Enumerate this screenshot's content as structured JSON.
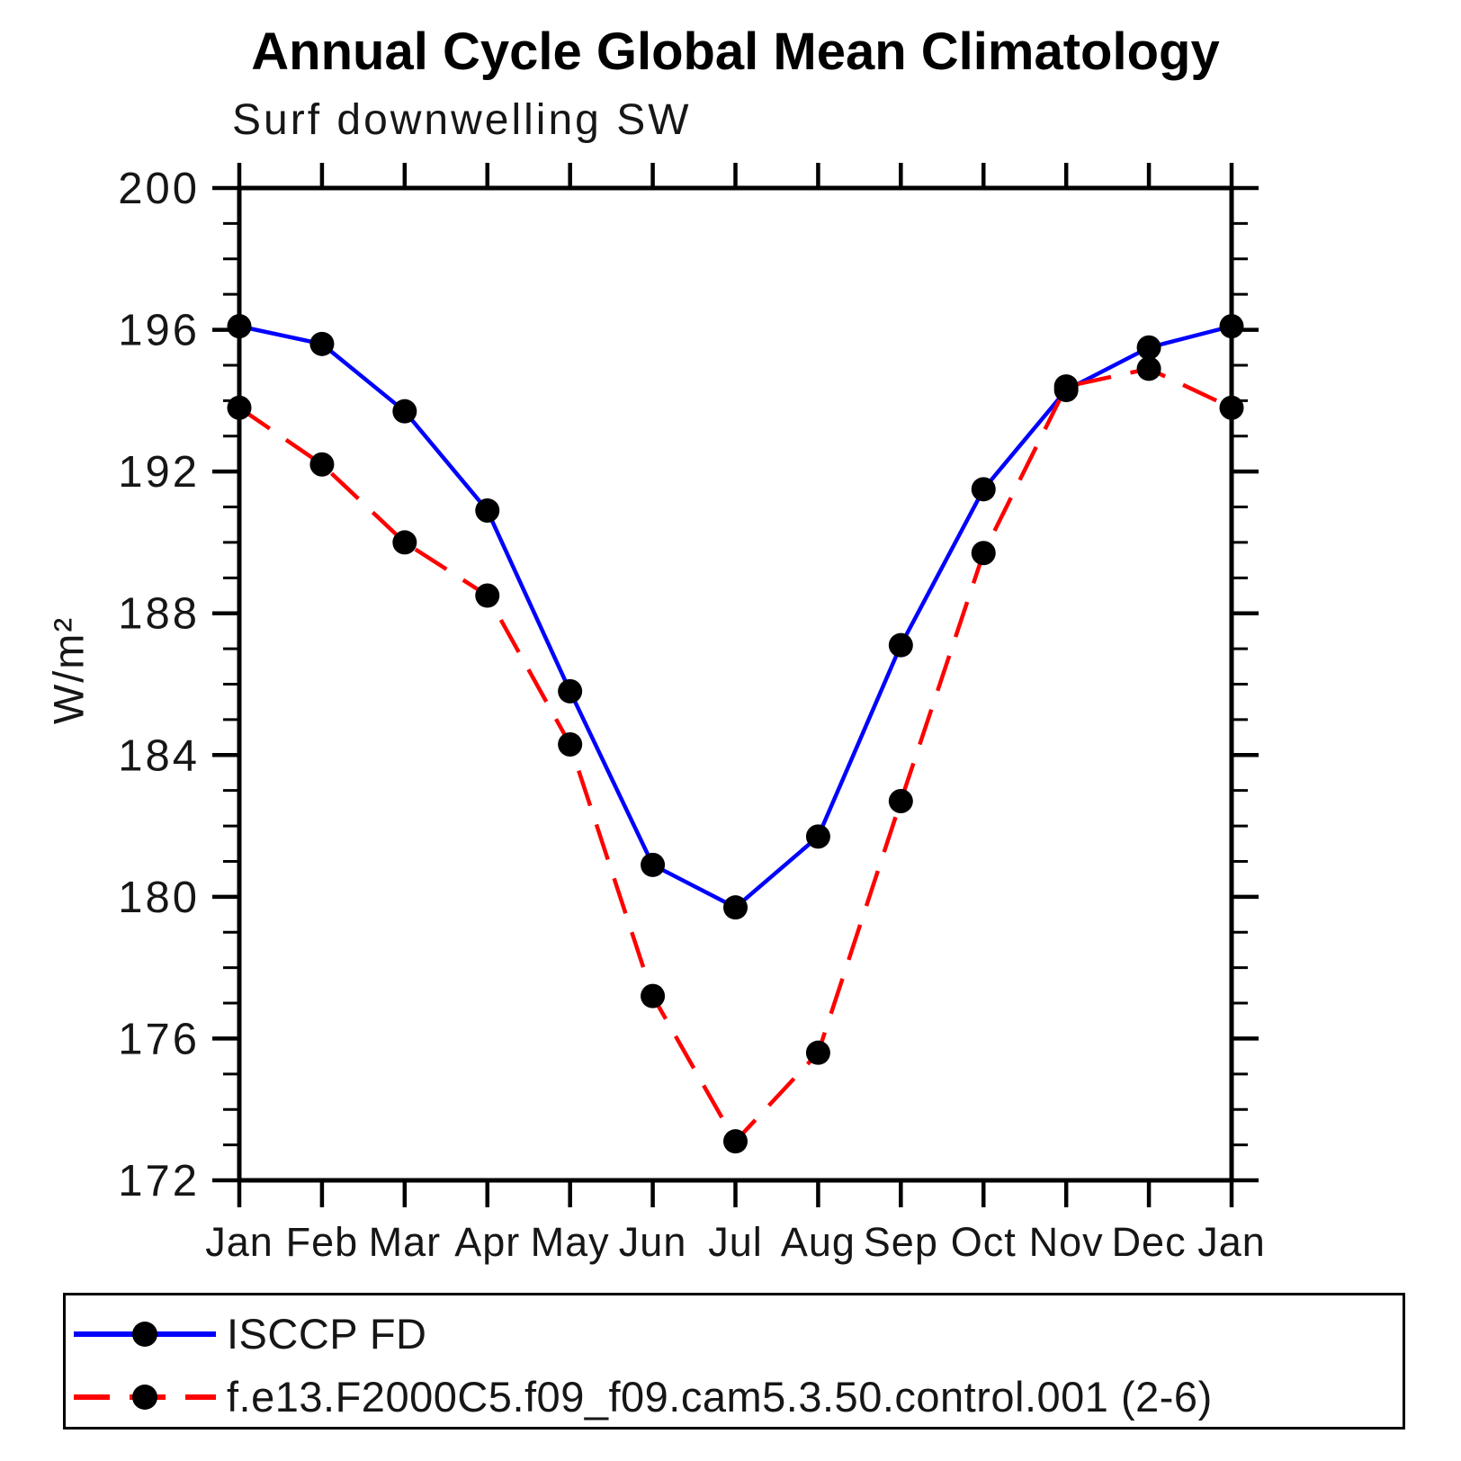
{
  "title": "Annual Cycle Global Mean Climatology",
  "subtitle": "Surf downwelling SW",
  "colors": {
    "obs_line": "#0000ff",
    "model_line": "#ff0000",
    "marker": "#000000",
    "axis": "#000000",
    "background": "#ffffff"
  },
  "chart_data": {
    "type": "line",
    "title": "Annual Cycle Global Mean Climatology",
    "subtitle": "Surf downwelling SW",
    "xlabel": "",
    "ylabel": "W/m²",
    "categories": [
      "Jan",
      "Feb",
      "Mar",
      "Apr",
      "May",
      "Jun",
      "Jul",
      "Aug",
      "Sep",
      "Oct",
      "Nov",
      "Dec",
      "Jan"
    ],
    "ylim": [
      172,
      200
    ],
    "ytick_major": 4,
    "ytick_minor": 1,
    "ytick_labels": [
      "172",
      "176",
      "180",
      "184",
      "188",
      "192",
      "196",
      "200"
    ],
    "grid": false,
    "legend_position": "bottom",
    "series": [
      {
        "name": "ISCCP FD",
        "color": "#0000ff",
        "style": "solid",
        "marker": "circle",
        "values": [
          196.1,
          195.6,
          193.7,
          190.9,
          185.8,
          180.9,
          179.7,
          181.7,
          187.1,
          191.5,
          194.3,
          195.5,
          196.1
        ]
      },
      {
        "name": "f.e13.F2000C5.f09_f09.cam5.3.50.control.001 (2-6)",
        "color": "#ff0000",
        "style": "dashed",
        "marker": "circle",
        "values": [
          193.8,
          192.2,
          190.0,
          188.5,
          184.3,
          177.2,
          173.1,
          175.6,
          182.7,
          189.7,
          194.4,
          194.9,
          193.8
        ]
      }
    ]
  }
}
